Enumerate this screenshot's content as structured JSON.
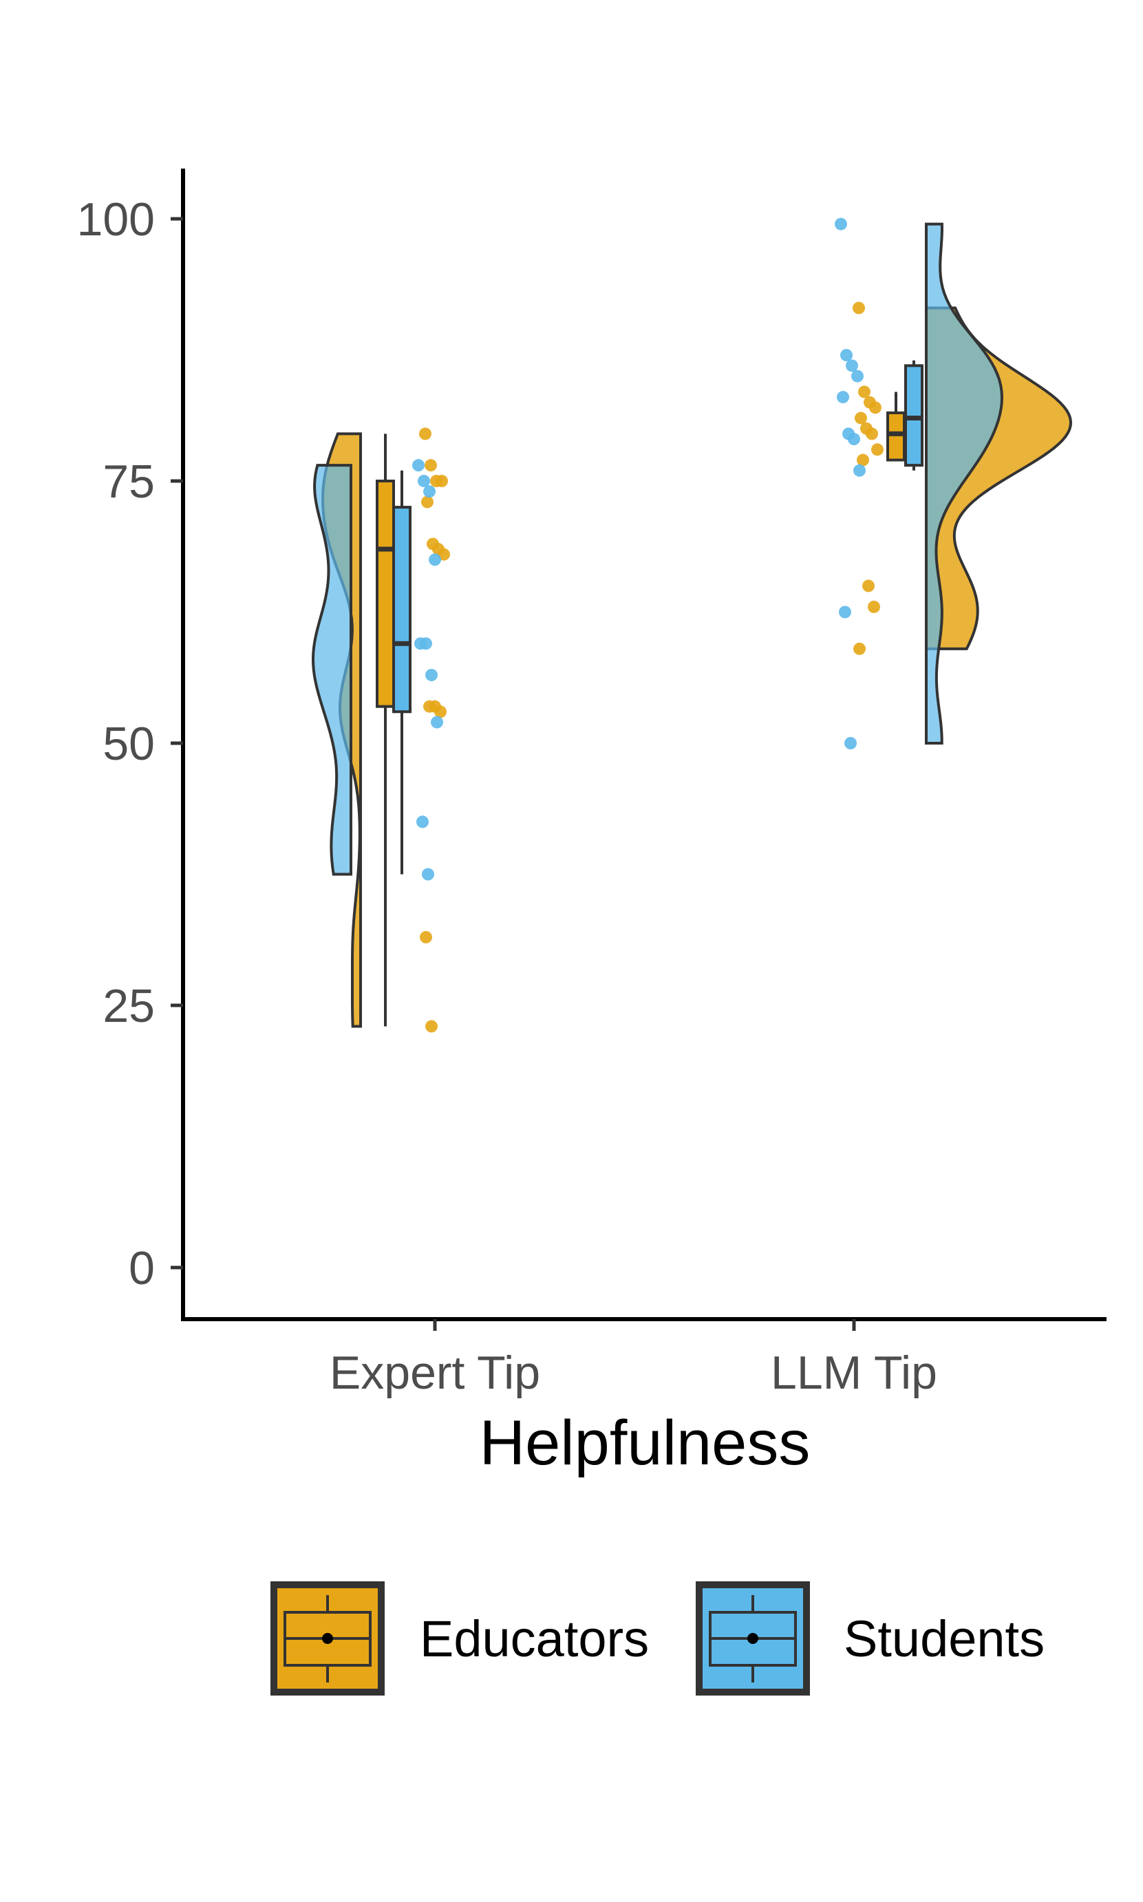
{
  "chart_data": {
    "type": "raincloud",
    "title": "",
    "xlabel": "Helpfulness",
    "ylabel": "",
    "ylim": [
      -10,
      105
    ],
    "yticks": [
      0,
      25,
      50,
      75,
      100
    ],
    "grid": false,
    "legend_position": "bottom",
    "categories": [
      "Expert Tip",
      "LLM Tip"
    ],
    "series": [
      {
        "name": "Educators",
        "color": "#E6A616",
        "groups": [
          {
            "category": "Expert Tip",
            "box": {
              "min": 23,
              "q1": 53.5,
              "median": 68.5,
              "q3": 75,
              "max": 79.5
            },
            "density_range": [
              23,
              79.5
            ],
            "points": [
              79.5,
              76.5,
              75,
              75,
              73,
              69,
              68.5,
              68,
              53.5,
              53.5,
              53,
              31.5,
              23
            ]
          },
          {
            "category": "LLM Tip",
            "box": {
              "min": 77,
              "q1": 77,
              "median": 79.5,
              "q3": 81.5,
              "max": 83.5
            },
            "density_range": [
              59,
              91.5
            ],
            "points": [
              91.5,
              83.5,
              82.5,
              82,
              81,
              80,
              79.5,
              78,
              77,
              65,
              63,
              59
            ]
          }
        ]
      },
      {
        "name": "Students",
        "color": "#5DB8EA",
        "groups": [
          {
            "category": "Expert Tip",
            "box": {
              "min": 37.5,
              "q1": 53,
              "median": 59.5,
              "q3": 72.5,
              "max": 76
            },
            "density_range": [
              37.5,
              76.5
            ],
            "points": [
              76.5,
              75,
              74,
              67.5,
              59.5,
              59.5,
              56.5,
              52,
              42.5,
              37.5
            ]
          },
          {
            "category": "LLM Tip",
            "box": {
              "min": 76,
              "q1": 76.5,
              "median": 81,
              "q3": 86,
              "max": 86.5
            },
            "density_range": [
              50,
              99.5
            ],
            "points": [
              99.5,
              87,
              86,
              85,
              83,
              79.5,
              79,
              76,
              62.5,
              50
            ]
          }
        ]
      }
    ]
  }
}
